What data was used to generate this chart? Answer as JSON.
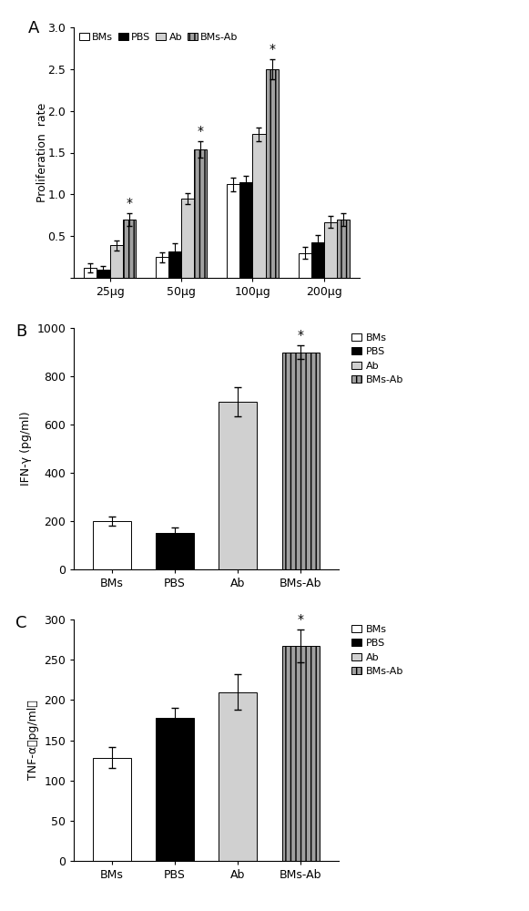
{
  "panel_A": {
    "title": "A",
    "categories": [
      "25μg",
      "50μg",
      "100μg",
      "200μg"
    ],
    "series": {
      "BMs": [
        0.12,
        0.25,
        1.12,
        0.3
      ],
      "PBS": [
        0.1,
        0.32,
        1.15,
        0.43
      ],
      "Ab": [
        0.39,
        0.95,
        1.72,
        0.67
      ],
      "BMs-Ab": [
        0.7,
        1.54,
        2.5,
        0.7
      ]
    },
    "errors": {
      "BMs": [
        0.05,
        0.06,
        0.08,
        0.07
      ],
      "PBS": [
        0.04,
        0.1,
        0.07,
        0.08
      ],
      "Ab": [
        0.06,
        0.07,
        0.08,
        0.07
      ],
      "BMs-Ab": [
        0.08,
        0.1,
        0.12,
        0.08
      ]
    },
    "star_indices": [
      0,
      1,
      2
    ],
    "ylabel": "Proliferation  rate",
    "ylim": [
      0,
      3.0
    ],
    "yticks": [
      0,
      0.5,
      1.0,
      1.5,
      2.0,
      2.5,
      3.0
    ],
    "colors": [
      "white",
      "black",
      "#d0d0d0",
      "#a0a0a0"
    ],
    "legend_labels": [
      "BMs",
      "PBS",
      "Ab",
      "BMs-Ab"
    ],
    "bar_width": 0.18
  },
  "panel_B": {
    "title": "B",
    "categories": [
      "BMs",
      "PBS",
      "Ab",
      "BMs-Ab"
    ],
    "values": [
      200,
      150,
      695,
      900
    ],
    "errors": [
      18,
      22,
      60,
      30
    ],
    "star_index": 3,
    "ylabel": "IFN-γ (pg/ml)",
    "ylim": [
      0,
      1000
    ],
    "yticks": [
      0,
      200,
      400,
      600,
      800,
      1000
    ],
    "colors": [
      "white",
      "black",
      "#d0d0d0",
      "#a0a0a0"
    ],
    "legend_labels": [
      "BMs",
      "PBS",
      "Ab",
      "BMs-Ab"
    ],
    "bar_width": 0.6
  },
  "panel_C": {
    "title": "C",
    "categories": [
      "BMs",
      "PBS",
      "Ab",
      "BMs-Ab"
    ],
    "values": [
      128,
      178,
      210,
      267
    ],
    "errors": [
      13,
      12,
      22,
      20
    ],
    "star_index": 3,
    "ylabel": "TNF-α（pg/ml）",
    "ylim": [
      0,
      300
    ],
    "yticks": [
      0,
      50,
      100,
      150,
      200,
      250,
      300
    ],
    "colors": [
      "white",
      "black",
      "#d0d0d0",
      "#a0a0a0"
    ],
    "legend_labels": [
      "BMs",
      "PBS",
      "Ab",
      "BMs-Ab"
    ],
    "bar_width": 0.6
  }
}
